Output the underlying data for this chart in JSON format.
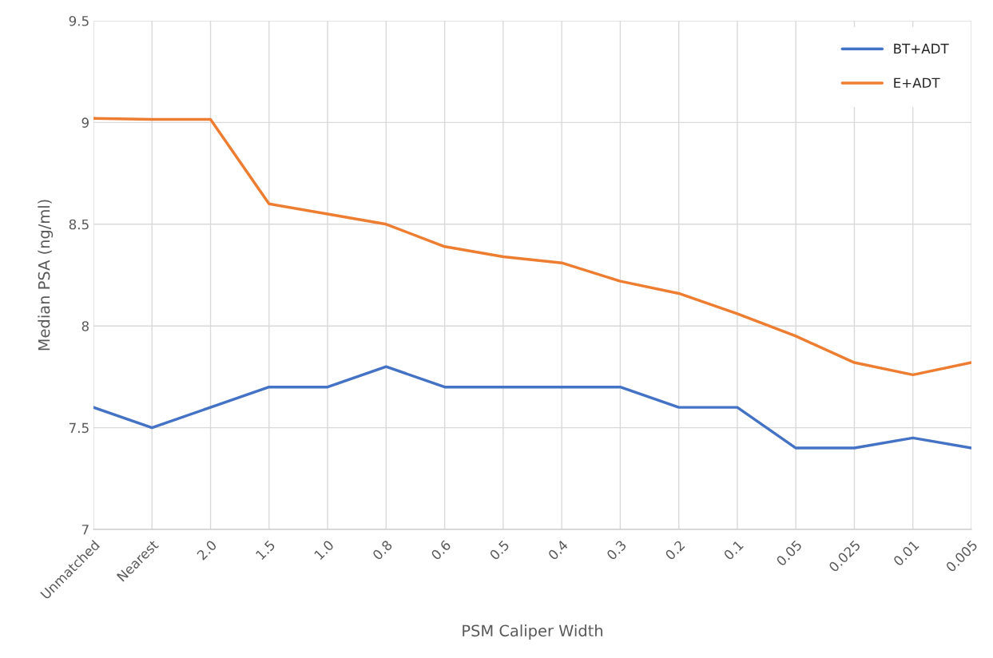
{
  "chart_data": {
    "type": "line",
    "xlabel": "PSM Caliper Width",
    "ylabel": "Median PSA (ng/ml)",
    "categories": [
      "Unmatched",
      "Nearest",
      "2.0",
      "1.5",
      "1.0",
      "0.8",
      "0.6",
      "0.5",
      "0.4",
      "0.3",
      "0.2",
      "0.1",
      "0.05",
      "0.025",
      "0.01",
      "0.005"
    ],
    "series": [
      {
        "name": "BT+ADT",
        "color": "#4472c4",
        "values": [
          7.6,
          7.5,
          7.6,
          7.7,
          7.7,
          7.8,
          7.7,
          7.7,
          7.7,
          7.7,
          7.6,
          7.6,
          7.4,
          7.4,
          7.45,
          7.4
        ]
      },
      {
        "name": "E+ADT",
        "color": "#ed7d31",
        "values": [
          9.02,
          9.015,
          9.015,
          8.6,
          8.55,
          8.5,
          8.39,
          8.34,
          8.31,
          8.22,
          8.16,
          8.06,
          7.95,
          7.82,
          7.76,
          7.82
        ]
      }
    ],
    "ylim": [
      7,
      9.5
    ],
    "yticks": [
      7,
      7.5,
      8,
      8.5,
      9,
      9.5
    ],
    "grid": true,
    "legend": "top right",
    "marker": "none",
    "line_style": "solid"
  }
}
